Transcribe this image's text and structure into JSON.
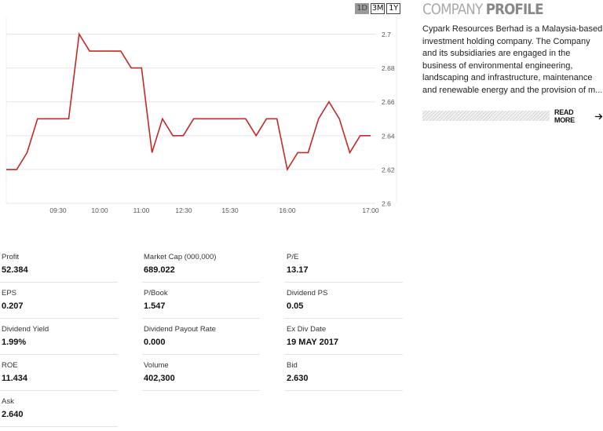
{
  "range_tabs": [
    {
      "label": "1D",
      "active": true
    },
    {
      "label": "3M",
      "active": false
    },
    {
      "label": "1Y",
      "active": false
    }
  ],
  "chart_data": {
    "type": "line",
    "title": "",
    "xlabel": "",
    "ylabel": "",
    "x_ticks": [
      "09:30",
      "10:00",
      "11:00",
      "12:30",
      "15:30",
      "16:00",
      "17:00"
    ],
    "y_ticks": [
      2.6,
      2.62,
      2.64,
      2.66,
      2.68,
      2.7
    ],
    "ylim": [
      2.6,
      2.71
    ],
    "series": [
      {
        "values": [
          2.62,
          2.62,
          2.63,
          2.65,
          2.65,
          2.65,
          2.65,
          2.7,
          2.69,
          2.69,
          2.69,
          2.69,
          2.68,
          2.68,
          2.63,
          2.65,
          2.64,
          2.64,
          2.65,
          2.65,
          2.65,
          2.65,
          2.65,
          2.65,
          2.64,
          2.65,
          2.65,
          2.62,
          2.63,
          2.63,
          2.65,
          2.66,
          2.65,
          2.63,
          2.64,
          2.64
        ],
        "color": "#c62828"
      }
    ],
    "grid": true,
    "y_axis_side": "right"
  },
  "profile": {
    "title_light": "COMPANY ",
    "title_strong": "PROFILE",
    "description": "Cypark Resources Berhad is a Malaysia-based investment holding company. The Company and its subsidiaries are engaged in the business of environmental engineering, landscaping and infrastructure, maintenance and renewable energy and the provision of m...",
    "read_more": "READ MORE"
  },
  "stats": [
    {
      "label": "Profit",
      "value": "52.384"
    },
    {
      "label": "Market Cap  (000,000)",
      "value": "689.022"
    },
    {
      "label": "P/E",
      "value": "13.17"
    },
    {
      "label": "EPS",
      "value": "0.207"
    },
    {
      "label": "P/Book",
      "value": "1.547"
    },
    {
      "label": "Dividend PS",
      "value": "0.05"
    },
    {
      "label": "Dividend Yield",
      "value": "1.99%"
    },
    {
      "label": "Dividend Payout Rate",
      "value": "0.000"
    },
    {
      "label": "Ex Div Date",
      "value": "19 MAY 2017"
    },
    {
      "label": "ROE",
      "value": "11.434"
    },
    {
      "label": "Volume",
      "value": "402,300"
    },
    {
      "label": "Bid",
      "value": "2.630"
    },
    {
      "label": "Ask",
      "value": "2.640"
    }
  ],
  "colors": {
    "line": "#c62828",
    "grid": "#e6e6e6",
    "axis_text": "#555555"
  }
}
